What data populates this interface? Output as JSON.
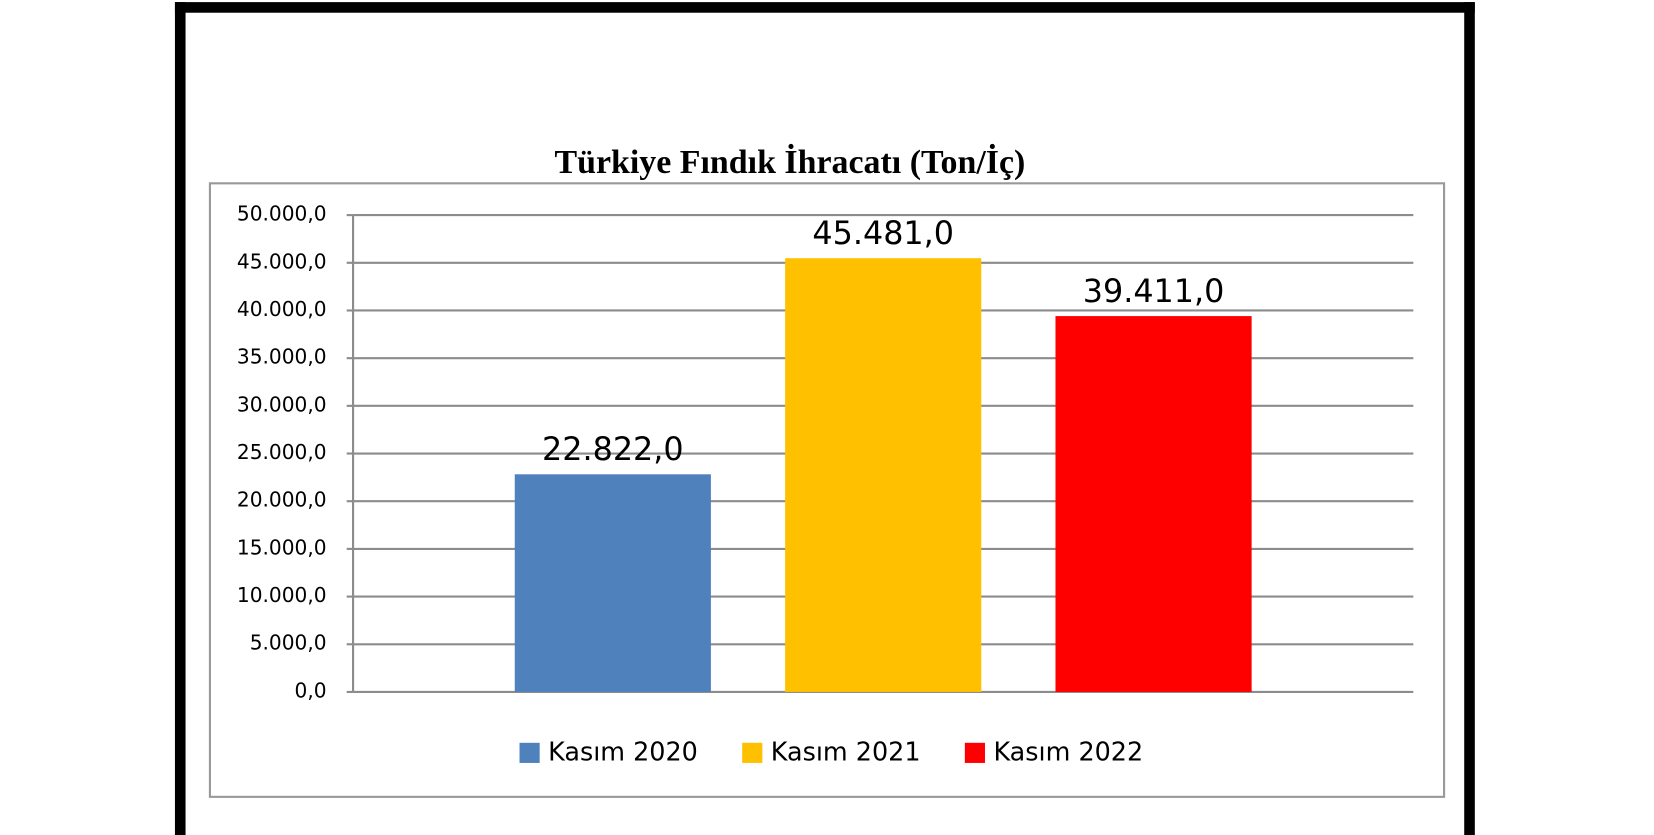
{
  "chart_data": {
    "type": "bar",
    "title": "Türkiye Fındık İhracatı (Ton/İç)",
    "categories": [
      null
    ],
    "series": [
      {
        "name": "Kasım 2020",
        "color": "#4f81bd",
        "values": [
          22822
        ],
        "value_labels": [
          "22.822,0"
        ]
      },
      {
        "name": "Kasım 2021",
        "color": "#ffc000",
        "values": [
          45481
        ],
        "value_labels": [
          "45.481,0"
        ]
      },
      {
        "name": "Kasım 2022",
        "color": "#ff0000",
        "values": [
          39411
        ],
        "value_labels": [
          "39.411,0"
        ]
      }
    ],
    "ylim": [
      0,
      50000
    ],
    "yticks": [
      {
        "value": 0,
        "label": "0,0"
      },
      {
        "value": 5000,
        "label": "5.000,0"
      },
      {
        "value": 10000,
        "label": "10.000,0"
      },
      {
        "value": 15000,
        "label": "15.000,0"
      },
      {
        "value": 20000,
        "label": "20.000,0"
      },
      {
        "value": 25000,
        "label": "25.000,0"
      },
      {
        "value": 30000,
        "label": "30.000,0"
      },
      {
        "value": 35000,
        "label": "35.000,0"
      },
      {
        "value": 40000,
        "label": "40.000,0"
      },
      {
        "value": 45000,
        "label": "45.000,0"
      },
      {
        "value": 50000,
        "label": "50.000,0"
      }
    ],
    "grid": true,
    "legend": "bottom"
  }
}
